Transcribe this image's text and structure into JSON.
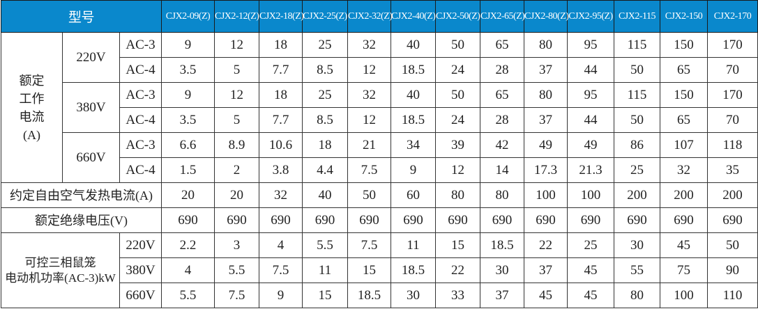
{
  "header": {
    "model_label": "型号",
    "models": [
      "CJX2-09(Z)",
      "CJX2-12(Z)",
      "CJX2-18(Z)",
      "CJX2-25(Z)",
      "CJX2-32(Z)",
      "CJX2-40(Z)",
      "CJX2-50(Z)",
      "CJX2-65(Z)",
      "CJX2-80(Z)",
      "CJX2-95(Z)",
      "CJX2-115",
      "CJX2-150",
      "CJX2-170"
    ]
  },
  "rated_current": {
    "label_lines": [
      "额定",
      "工作",
      "电流",
      "(A)"
    ],
    "groups": [
      {
        "voltage": "220V",
        "rows": [
          {
            "cat": "AC-3",
            "values": [
              "9",
              "12",
              "18",
              "25",
              "32",
              "40",
              "50",
              "65",
              "80",
              "95",
              "115",
              "150",
              "170"
            ]
          },
          {
            "cat": "AC-4",
            "values": [
              "3.5",
              "5",
              "7.7",
              "8.5",
              "12",
              "18.5",
              "24",
              "28",
              "37",
              "44",
              "50",
              "65",
              "70"
            ]
          }
        ]
      },
      {
        "voltage": "380V",
        "rows": [
          {
            "cat": "AC-3",
            "values": [
              "9",
              "12",
              "18",
              "25",
              "32",
              "40",
              "50",
              "65",
              "80",
              "95",
              "115",
              "150",
              "170"
            ]
          },
          {
            "cat": "AC-4",
            "values": [
              "3.5",
              "5",
              "7.7",
              "8.5",
              "12",
              "18.5",
              "24",
              "28",
              "37",
              "44",
              "50",
              "65",
              "70"
            ]
          }
        ]
      },
      {
        "voltage": "660V",
        "rows": [
          {
            "cat": "AC-3",
            "values": [
              "6.6",
              "8.9",
              "10.6",
              "18",
              "21",
              "34",
              "39",
              "42",
              "49",
              "49",
              "86",
              "107",
              "118"
            ]
          },
          {
            "cat": "AC-4",
            "values": [
              "1.5",
              "2",
              "3.8",
              "4.4",
              "7.5",
              "9",
              "12",
              "14",
              "17.3",
              "21.3",
              "25",
              "32",
              "35"
            ]
          }
        ]
      }
    ]
  },
  "thermal_current": {
    "label": "约定自由空气发热电流(A)",
    "values": [
      "20",
      "20",
      "32",
      "40",
      "50",
      "60",
      "80",
      "80",
      "100",
      "100",
      "200",
      "200",
      "200"
    ]
  },
  "insulation_voltage": {
    "label": "额定绝缘电压(V)",
    "values": [
      "690",
      "690",
      "690",
      "690",
      "690",
      "690",
      "690",
      "690",
      "690",
      "690",
      "690",
      "690",
      "690"
    ]
  },
  "motor_power": {
    "label_lines": [
      "可控三相鼠笼",
      "电动机功率(AC-3)kW"
    ],
    "rows": [
      {
        "voltage": "220V",
        "values": [
          "2.2",
          "3",
          "4",
          "5.5",
          "7.5",
          "11",
          "15",
          "18.5",
          "22",
          "25",
          "30",
          "45",
          "50"
        ]
      },
      {
        "voltage": "380V",
        "values": [
          "4",
          "5.5",
          "7.5",
          "11",
          "15",
          "18.5",
          "22",
          "30",
          "37",
          "45",
          "55",
          "75",
          "90"
        ]
      },
      {
        "voltage": "660V",
        "values": [
          "5.5",
          "7.5",
          "9",
          "15",
          "18.5",
          "30",
          "33",
          "37",
          "45",
          "45",
          "80",
          "100",
          "110"
        ]
      }
    ]
  },
  "colors": {
    "header_bg": "#0a88cc",
    "header_text": "#ffffff"
  }
}
